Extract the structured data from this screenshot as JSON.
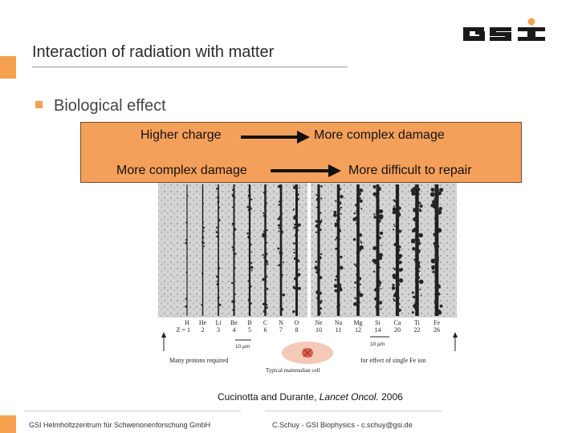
{
  "slide": {
    "title": "Interaction of radiation with matter",
    "bullet": "Biological effect",
    "accent_color": "#f5a04e"
  },
  "box": {
    "row1_left": "Higher charge",
    "row1_right": "More complex damage",
    "row2_left": "More complex damage",
    "row2_right": "More difficult to repair",
    "color": "#f5a05a"
  },
  "figure": {
    "elements": [
      "H",
      "He",
      "Li",
      "Be",
      "B",
      "C",
      "N",
      "O",
      "Ne",
      "Na",
      "Mg",
      "Si",
      "Ca",
      "Ti",
      "Fe"
    ],
    "z_prefix": "Z = 1",
    "z_values": [
      "1",
      "2",
      "3",
      "4",
      "5",
      "6",
      "7",
      "8",
      "10",
      "11",
      "12",
      "14",
      "20",
      "22",
      "26"
    ],
    "scale_left": "10 µm",
    "scale_right": "10 µm",
    "left_note": "Many protons required",
    "center_note": "Typical mammalian cell",
    "right_note": "for effect of single Fe ion"
  },
  "caption": {
    "authors": "Cucinotta and Durante, ",
    "journal": "Lancet Oncol.",
    "year": " 2006"
  },
  "footer": {
    "left": "GSI Helmholtzzentrum für Schwerionenforschung GmbH",
    "right": "C.Schuy - GSI Biophysics - c.schuy@gsi.de"
  },
  "logo": {
    "name": "gsi-logo",
    "color": "#f5a04e"
  }
}
